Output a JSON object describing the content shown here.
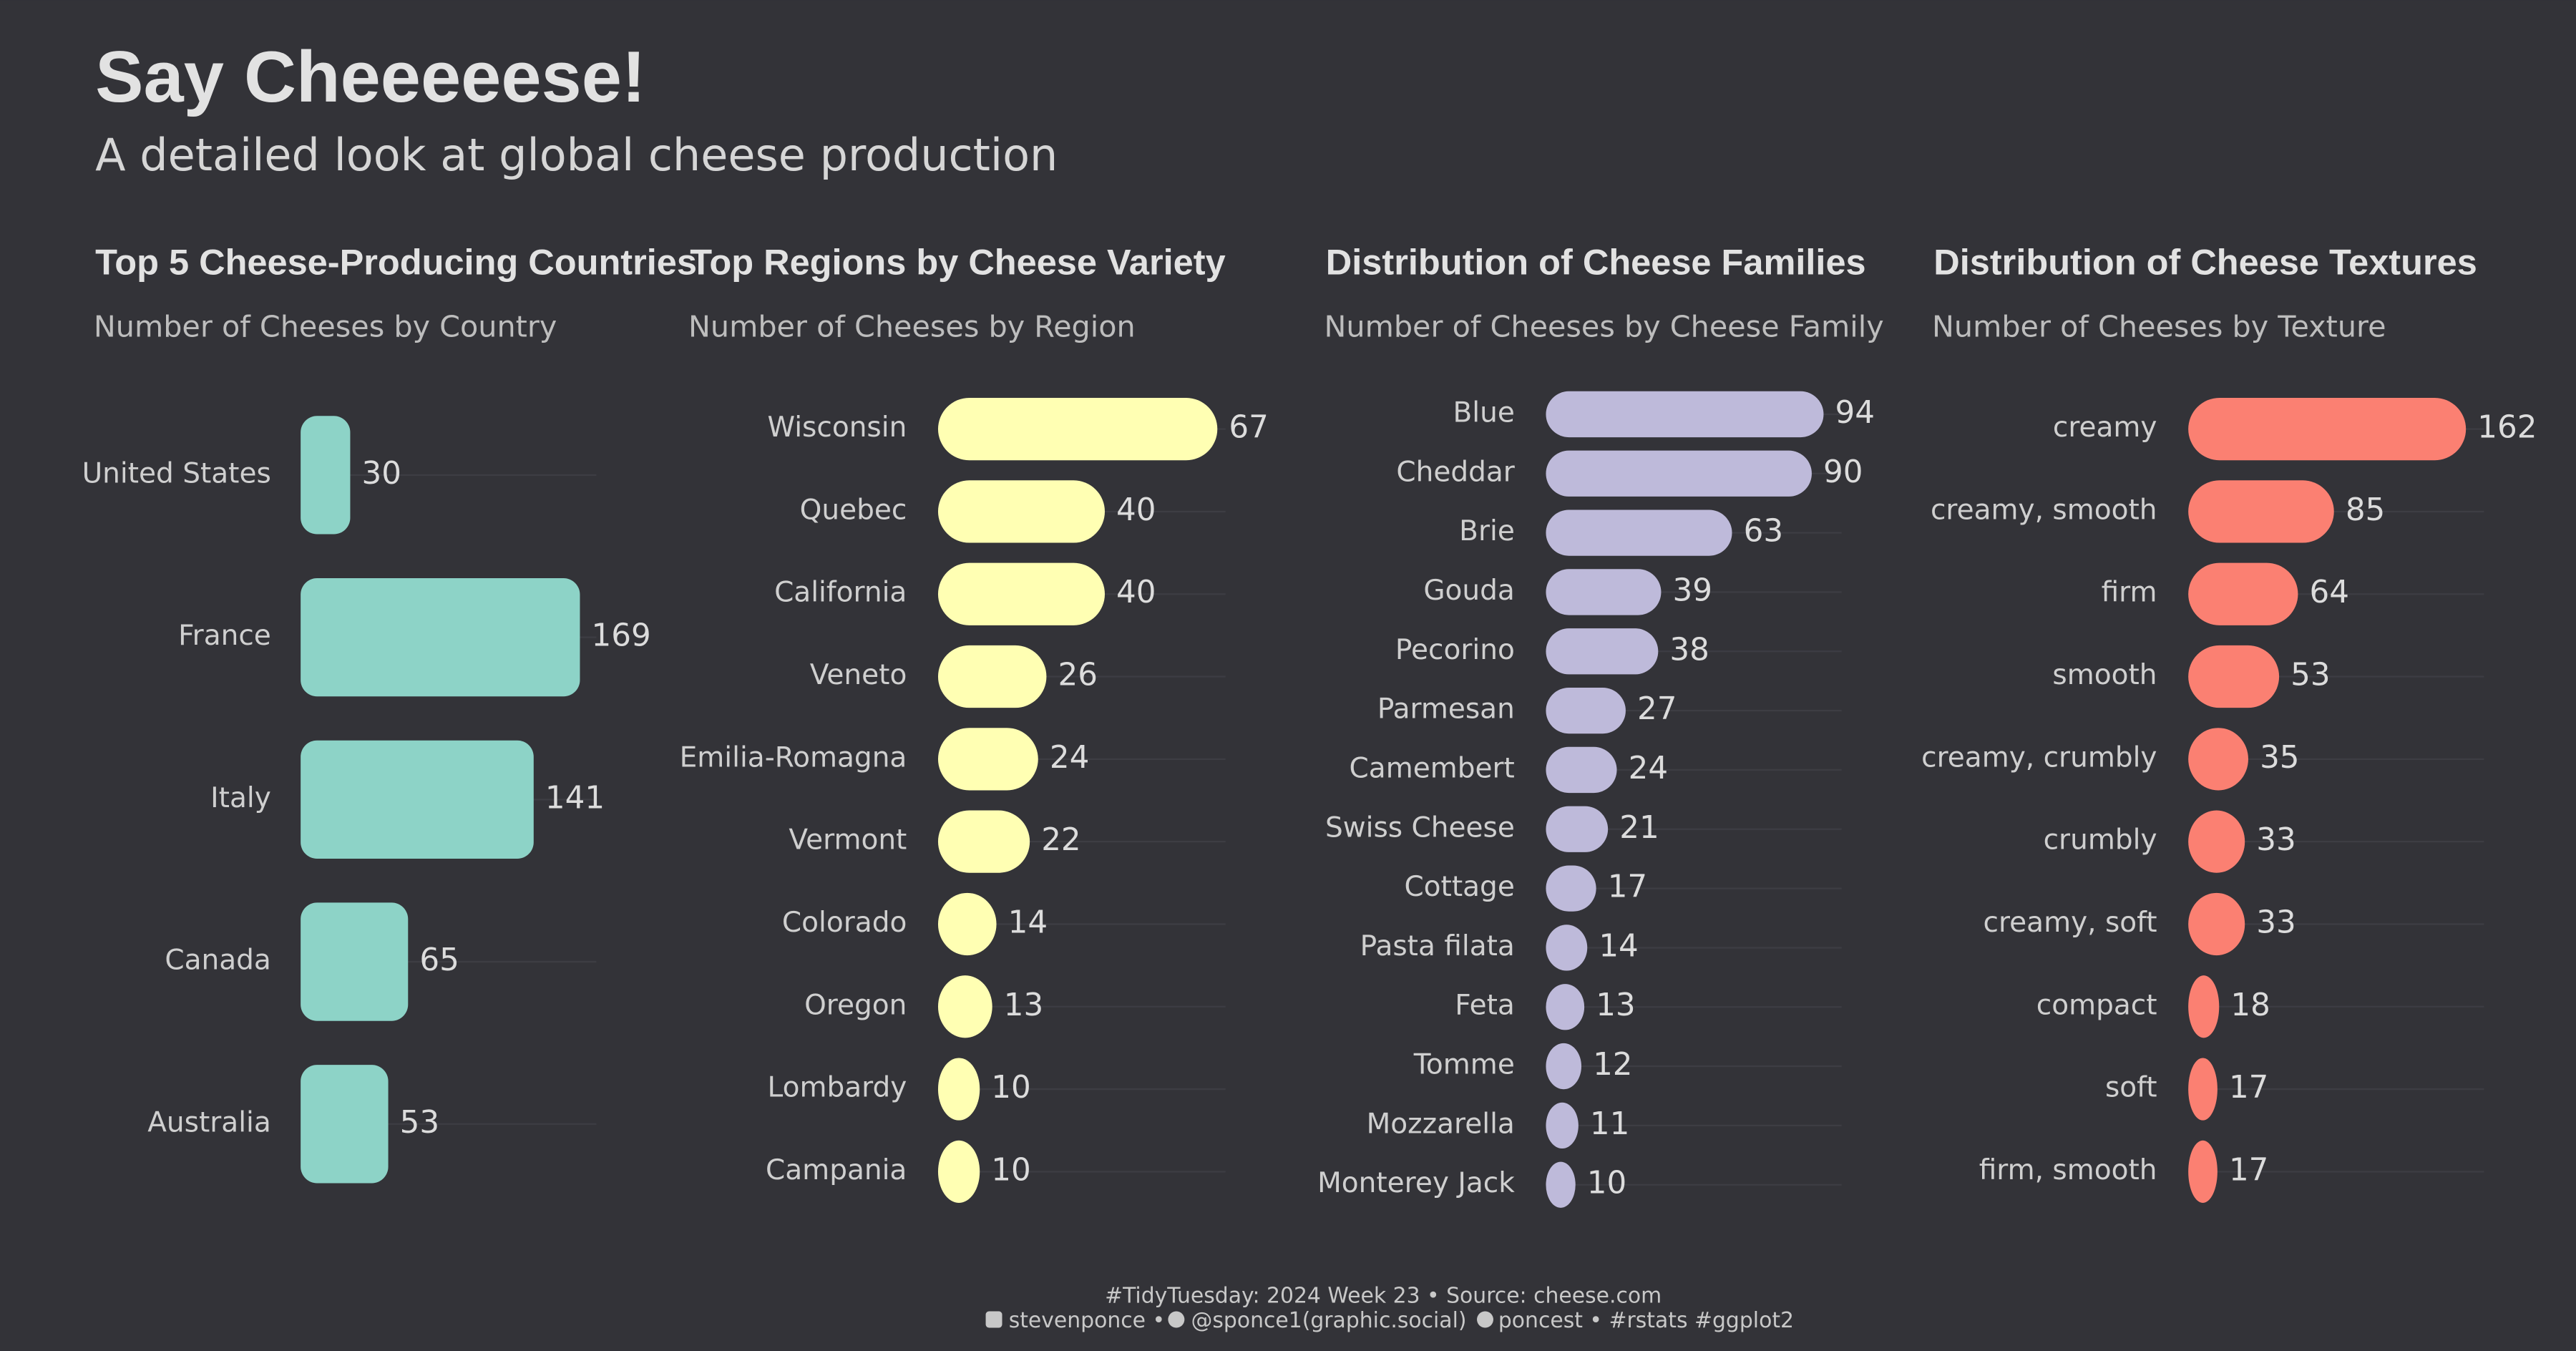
{
  "title": "Say Cheeeeese!",
  "subtitle": "A detailed look at global cheese production",
  "caption": [
    "#TidyTuesday: 2024 Week 23 • Source: cheese.com",
    "stevenponce •",
    "@sponce1(graphic.social)",
    "poncest • #rstats #ggplot2"
  ],
  "chart_data": [
    {
      "type": "bar",
      "orientation": "horizontal",
      "title": "Top 5 Cheese-Producing Countries",
      "subtitle": "Number of Cheeses by Country",
      "categories": [
        "United States",
        "France",
        "Italy",
        "Canada",
        "Australia"
      ],
      "values": [
        30,
        169,
        141,
        65,
        53
      ],
      "color": "#8dd3c7"
    },
    {
      "type": "bar",
      "orientation": "horizontal",
      "title": "Top Regions by Cheese Variety",
      "subtitle": "Number of Cheeses by Region",
      "categories": [
        "Wisconsin",
        "Quebec",
        "California",
        "Veneto",
        "Emilia-Romagna",
        "Vermont",
        "Colorado",
        "Oregon",
        "Lombardy",
        "Campania"
      ],
      "values": [
        67,
        40,
        40,
        26,
        24,
        22,
        14,
        13,
        10,
        10
      ],
      "color": "#ffffb3"
    },
    {
      "type": "bar",
      "orientation": "horizontal",
      "title": "Distribution of Cheese Families",
      "subtitle": "Number of Cheeses by Cheese Family",
      "categories": [
        "Blue",
        "Cheddar",
        "Brie",
        "Gouda",
        "Pecorino",
        "Parmesan",
        "Camembert",
        "Swiss Cheese",
        "Cottage",
        "Pasta filata",
        "Feta",
        "Tomme",
        "Mozzarella",
        "Monterey Jack"
      ],
      "values": [
        94,
        90,
        63,
        39,
        38,
        27,
        24,
        21,
        17,
        14,
        13,
        12,
        11,
        10
      ],
      "color": "#bebada"
    },
    {
      "type": "bar",
      "orientation": "horizontal",
      "title": "Distribution of Cheese Textures",
      "subtitle": "Number of Cheeses by Texture",
      "categories": [
        "creamy",
        "creamy, smooth",
        "firm",
        "smooth",
        "creamy, crumbly",
        "crumbly",
        "creamy, soft",
        "compact",
        "soft",
        "firm, smooth"
      ],
      "values": [
        162,
        85,
        64,
        53,
        35,
        33,
        33,
        18,
        17,
        17
      ],
      "color": "#fb8072"
    }
  ]
}
